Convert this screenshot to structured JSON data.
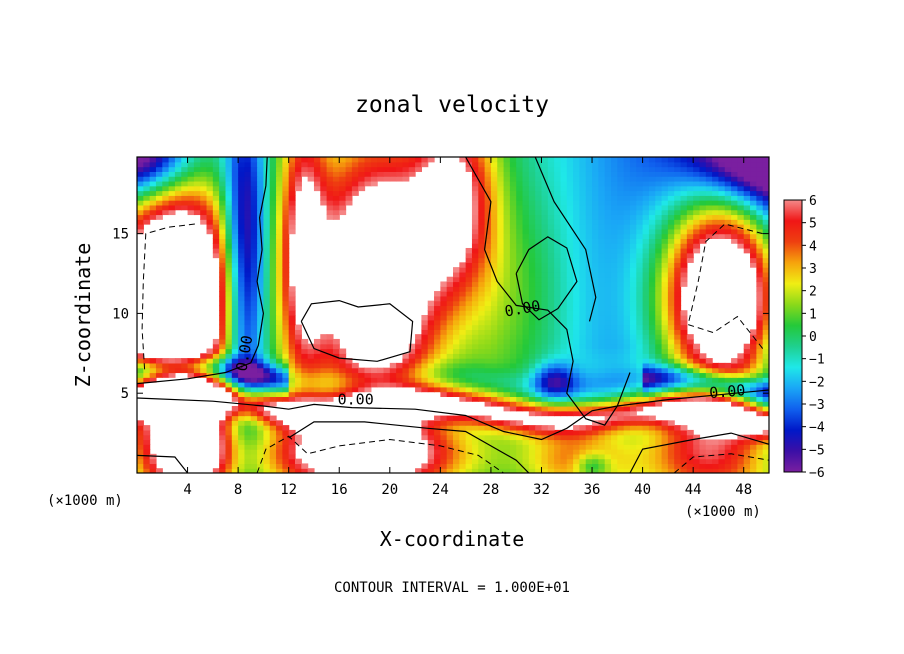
{
  "chart_data": {
    "type": "heatmap",
    "title": "zonal velocity",
    "xlabel": "X-coordinate",
    "ylabel": "Z-coordinate",
    "x_unit": "(×1000 m)",
    "y_unit": "(×1000 m)",
    "xlim": [
      0,
      50
    ],
    "ylim": [
      0,
      19.8
    ],
    "x_ticks": [
      4,
      8,
      12,
      16,
      20,
      24,
      28,
      32,
      36,
      40,
      44,
      48
    ],
    "y_ticks": [
      5,
      10,
      15
    ],
    "colorbar": {
      "ticks": [
        6,
        5,
        4,
        3,
        2,
        1,
        0,
        -1,
        -2,
        -3,
        -4,
        -5,
        -6
      ],
      "range": [
        -6,
        6
      ],
      "over_range_color": "#ffffff"
    },
    "contour_labels": [
      {
        "text": "0.00",
        "x": 8.5,
        "z": 7.5,
        "rotate": -80
      },
      {
        "text": "0.00",
        "x": 17.3,
        "z": 4.6,
        "rotate": 0
      },
      {
        "text": "0.00",
        "x": 30.5,
        "z": 10.3,
        "rotate": -10
      },
      {
        "text": "0.00",
        "x": 46.7,
        "z": 5.1,
        "rotate": -5
      }
    ],
    "footer": "CONTOUR INTERVAL = 1.000E+01"
  },
  "colors": {
    "palette": [
      "#7a1fa0",
      "#3b0fa6",
      "#0018c8",
      "#1060ee",
      "#1aa6f6",
      "#1fe8e8",
      "#1fd08e",
      "#24c93a",
      "#8ad91a",
      "#f0ee14",
      "#f6a40c",
      "#ee4010",
      "#f01616",
      "#f58a8a"
    ],
    "frame": "#000000"
  }
}
